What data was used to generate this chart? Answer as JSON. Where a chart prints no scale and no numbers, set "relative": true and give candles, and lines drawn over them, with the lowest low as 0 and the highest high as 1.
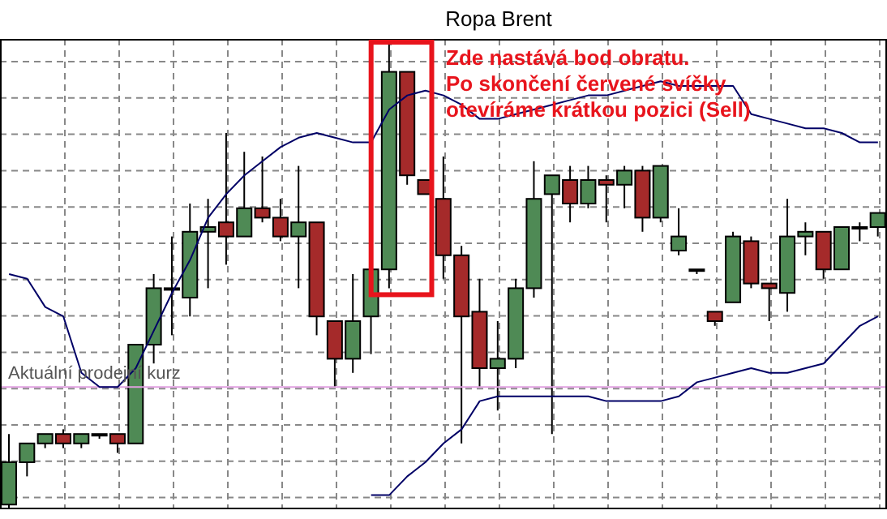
{
  "chart_data": {
    "type": "candlestick",
    "title": "Ropa Brent",
    "relative": true,
    "grid": true,
    "categories": [
      null,
      null,
      null,
      null,
      null,
      null,
      null,
      null,
      null,
      null,
      null,
      null,
      null,
      null,
      null,
      null,
      null,
      null,
      null,
      null,
      null,
      null,
      null,
      null,
      null,
      null,
      null,
      null,
      null,
      null,
      null,
      null,
      null,
      null,
      null,
      null,
      null,
      null,
      null,
      null,
      null,
      null,
      null,
      null,
      null,
      null,
      null,
      null,
      null
    ],
    "ohlc": [
      [
        0.01,
        0.16,
        0,
        0.1
      ],
      [
        0.1,
        0.14,
        0.07,
        0.14
      ],
      [
        0.14,
        0.16,
        0.13,
        0.16
      ],
      [
        0.16,
        0.17,
        0.13,
        0.14
      ],
      [
        0.14,
        0.16,
        0.13,
        0.16
      ],
      [
        0.16,
        0.16,
        0.15,
        0.16
      ],
      [
        0.16,
        0.16,
        0.12,
        0.14
      ],
      [
        0.14,
        0.35,
        0.14,
        0.35
      ],
      [
        0.35,
        0.5,
        0.31,
        0.47
      ],
      [
        0.47,
        0.58,
        0.37,
        0.47
      ],
      [
        0.45,
        0.65,
        0.41,
        0.59
      ],
      [
        0.59,
        0.66,
        0.47,
        0.6
      ],
      [
        0.61,
        0.8,
        0.52,
        0.58
      ],
      [
        0.58,
        0.76,
        0.58,
        0.64
      ],
      [
        0.64,
        0.75,
        0.61,
        0.62
      ],
      [
        0.62,
        0.66,
        0.57,
        0.58
      ],
      [
        0.58,
        0.73,
        0.47,
        0.61
      ],
      [
        0.61,
        0.61,
        0.37,
        0.41
      ],
      [
        0.4,
        0.4,
        0.26,
        0.32
      ],
      [
        0.32,
        0.5,
        0.29,
        0.4
      ],
      [
        0.41,
        0.51,
        0.33,
        0.51
      ],
      [
        0.51,
        1,
        0.47,
        0.93
      ],
      [
        0.93,
        0.93,
        0.69,
        0.71
      ],
      [
        0.7,
        0.7,
        0.67,
        0.67
      ],
      [
        0.66,
        0.75,
        0.49,
        0.54
      ],
      [
        0.54,
        0.56,
        0.14,
        0.41
      ],
      [
        0.42,
        0.49,
        0.26,
        0.3
      ],
      [
        0.3,
        0.4,
        0.21,
        0.32
      ],
      [
        0.32,
        0.49,
        0.3,
        0.47
      ],
      [
        0.47,
        0.74,
        0.45,
        0.66
      ],
      [
        0.67,
        0.71,
        0.16,
        0.71
      ],
      [
        0.7,
        0.73,
        0.61,
        0.65
      ],
      [
        0.65,
        0.73,
        0.64,
        0.7
      ],
      [
        0.7,
        0.71,
        0.61,
        0.69
      ],
      [
        0.69,
        0.73,
        0.64,
        0.72
      ],
      [
        0.72,
        0.73,
        0.59,
        0.62
      ],
      [
        0.62,
        0.73,
        0.61,
        0.73
      ],
      [
        0.55,
        0.64,
        0.54,
        0.58
      ],
      [
        0.51,
        0.51,
        0.5,
        0.51
      ],
      [
        0.42,
        0.42,
        0.39,
        0.4
      ],
      [
        0.44,
        0.59,
        0.44,
        0.58
      ],
      [
        0.57,
        0.58,
        0.47,
        0.48
      ],
      [
        0.48,
        0.48,
        0.4,
        0.47
      ],
      [
        0.46,
        0.66,
        0.42,
        0.58
      ],
      [
        0.58,
        0.61,
        0.54,
        0.59
      ],
      [
        0.59,
        0.59,
        0.49,
        0.51
      ],
      [
        0.51,
        0.6,
        0.51,
        0.6
      ],
      [
        0.6,
        0.61,
        0.57,
        0.6
      ],
      [
        0.6,
        0.63,
        0.58,
        0.63
      ]
    ],
    "colors": [
      "#4f8a55",
      "#4f8a55",
      "#4f8a55",
      "#a52a2a",
      "#4f8a55",
      "#000000",
      "#a52a2a",
      "#4f8a55",
      "#4f8a55",
      "#000000",
      "#4f8a55",
      "#4f8a55",
      "#a52a2a",
      "#4f8a55",
      "#a52a2a",
      "#a52a2a",
      "#4f8a55",
      "#a52a2a",
      "#a52a2a",
      "#4f8a55",
      "#4f8a55",
      "#4f8a55",
      "#a52a2a",
      "#a52a2a",
      "#a52a2a",
      "#a52a2a",
      "#a52a2a",
      "#4f8a55",
      "#4f8a55",
      "#4f8a55",
      "#4f8a55",
      "#a52a2a",
      "#4f8a55",
      "#a52a2a",
      "#4f8a55",
      "#a52a2a",
      "#4f8a55",
      "#4f8a55",
      "#000000",
      "#a52a2a",
      "#4f8a55",
      "#a52a2a",
      "#a52a2a",
      "#4f8a55",
      "#4f8a55",
      "#a52a2a",
      "#4f8a55",
      "#a52a2a",
      "#4f8a55"
    ],
    "series": [
      {
        "type": "line",
        "color": "#000066",
        "values": [
          0.5,
          0.49,
          0.43,
          0.41,
          0.29,
          0.26,
          0.26,
          0.3,
          0.38,
          0.46,
          0.53,
          0.62,
          0.67,
          0.71,
          0.74,
          0.77,
          0.79,
          0.8,
          0.79,
          0.78,
          0.78,
          0.85,
          0.88,
          0.89,
          0.88,
          0.86,
          0.83,
          0.83,
          0.84,
          0.85,
          0.86,
          0.87,
          0.88,
          0.88,
          0.89,
          0.9,
          0.91,
          0.9,
          0.9,
          0.9,
          0.9,
          0.84,
          0.83,
          0.82,
          0.81,
          0.81,
          0.8,
          0.78,
          0.78
        ]
      },
      {
        "type": "line",
        "color": "#000066",
        "values": [
          null,
          null,
          null,
          null,
          null,
          null,
          null,
          null,
          null,
          null,
          null,
          null,
          null,
          null,
          null,
          null,
          null,
          null,
          null,
          null,
          0.03,
          0.03,
          0.07,
          0.1,
          0.14,
          0.17,
          0.23,
          0.24,
          0.24,
          0.24,
          0.24,
          0.24,
          0.24,
          0.23,
          0.23,
          0.23,
          0.23,
          0.24,
          0.27,
          0.28,
          0.29,
          0.3,
          0.29,
          0.29,
          0.3,
          0.31,
          0.35,
          0.39,
          0.41
        ]
      }
    ],
    "ref_lines": [
      {
        "axis": "y",
        "value": 0.26,
        "label": "Aktuální prodejní kurz",
        "color": "#e0a0e0"
      }
    ],
    "annotations": [
      "Zde nastává bod obratu.\nPo skončení červené svíčky\notevíráme krátkou pozici (Sell)"
    ]
  }
}
